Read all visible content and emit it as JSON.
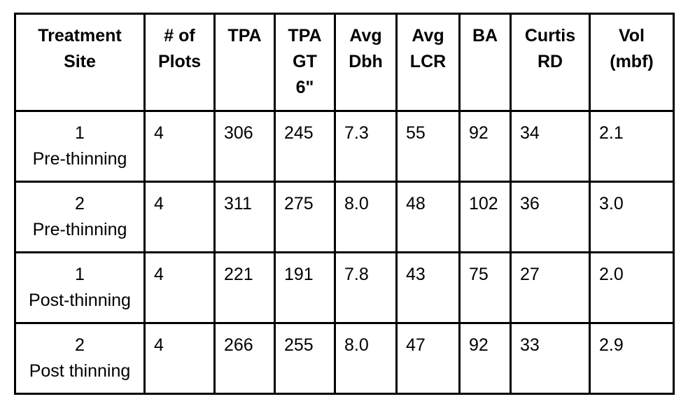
{
  "table": {
    "headers": [
      [
        "Treatment",
        "Site"
      ],
      [
        "# of",
        "Plots"
      ],
      [
        "TPA"
      ],
      [
        "TPA",
        "GT",
        "6\""
      ],
      [
        "Avg",
        "Dbh"
      ],
      [
        "Avg",
        "LCR"
      ],
      [
        "BA"
      ],
      [
        "Curtis",
        "RD"
      ],
      [
        "Vol",
        "(mbf)"
      ]
    ],
    "rows": [
      {
        "site": [
          "1",
          "Pre-thinning"
        ],
        "values": [
          "4",
          "306",
          "245",
          "7.3",
          "55",
          "92",
          "34",
          "2.1"
        ]
      },
      {
        "site": [
          "2",
          "Pre-thinning"
        ],
        "values": [
          "4",
          "311",
          "275",
          "8.0",
          "48",
          "102",
          "36",
          "3.0"
        ]
      },
      {
        "site": [
          "1",
          "Post-thinning"
        ],
        "values": [
          "4",
          "221",
          "191",
          "7.8",
          "43",
          "75",
          "27",
          "2.0"
        ]
      },
      {
        "site": [
          "2",
          "Post thinning"
        ],
        "values": [
          "4",
          "266",
          "255",
          "8.0",
          "47",
          "92",
          "33",
          "2.9"
        ]
      }
    ]
  }
}
